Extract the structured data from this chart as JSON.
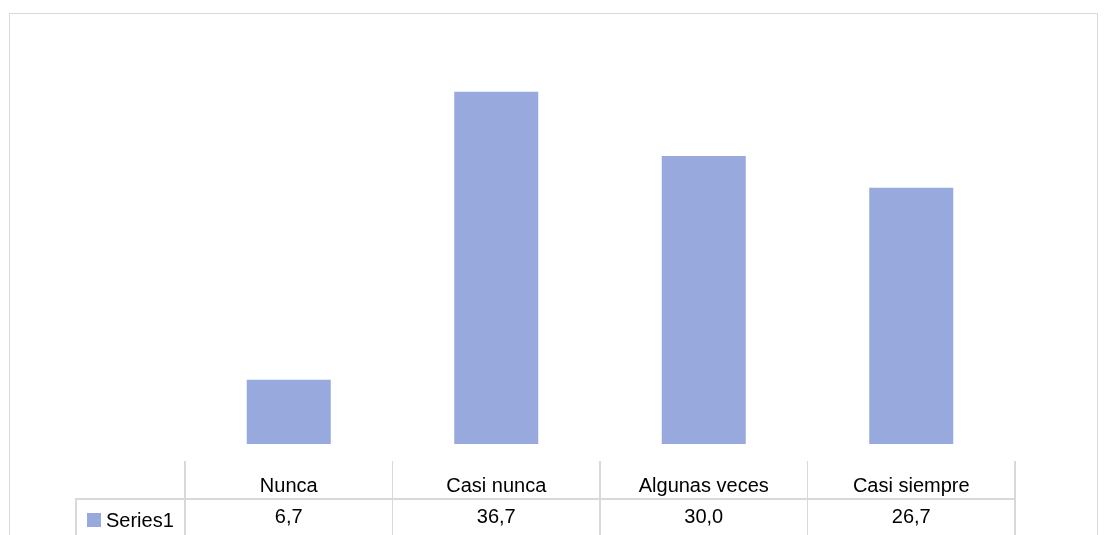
{
  "chart_data": {
    "type": "bar",
    "categories": [
      "Nunca",
      "Casi nunca",
      "Algunas veces",
      "Casi siempre"
    ],
    "series": [
      {
        "name": "Series1",
        "color": "#98aadd",
        "values": [
          6.7,
          36.7,
          30.0,
          26.7
        ],
        "value_labels": [
          "6,7",
          "36,7",
          "30,0",
          "26,7"
        ]
      }
    ],
    "tick_labels": "x",
    "legend": "bottom left"
  }
}
